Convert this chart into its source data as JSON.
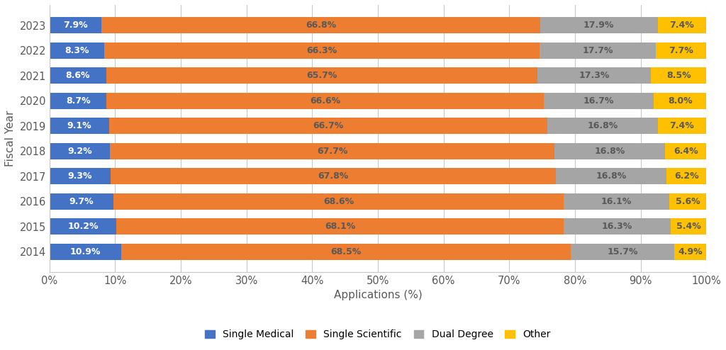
{
  "years": [
    "2023",
    "2022",
    "2021",
    "2020",
    "2019",
    "2018",
    "2017",
    "2016",
    "2015",
    "2014"
  ],
  "single_medical": [
    7.9,
    8.3,
    8.6,
    8.7,
    9.1,
    9.2,
    9.3,
    9.7,
    10.2,
    10.9
  ],
  "single_scientific": [
    66.8,
    66.3,
    65.7,
    66.6,
    66.7,
    67.7,
    67.8,
    68.6,
    68.1,
    68.5
  ],
  "dual_degree": [
    17.9,
    17.7,
    17.3,
    16.7,
    16.8,
    16.8,
    16.8,
    16.1,
    16.3,
    15.7
  ],
  "other": [
    7.4,
    7.7,
    8.5,
    8.0,
    7.4,
    6.4,
    6.2,
    5.6,
    5.4,
    4.9
  ],
  "colors": {
    "single_medical": "#4472C4",
    "single_scientific": "#ED7D31",
    "dual_degree": "#A5A5A5",
    "other": "#FFC000"
  },
  "labels": {
    "single_medical": "Single Medical",
    "single_scientific": "Single Scientific",
    "dual_degree": "Dual Degree",
    "other": "Other"
  },
  "xlabel": "Applications (%)",
  "ylabel": "Fiscal Year",
  "xlim": [
    0,
    100
  ],
  "xtick_labels": [
    "0%",
    "10%",
    "20%",
    "30%",
    "40%",
    "50%",
    "60%",
    "70%",
    "80%",
    "90%",
    "100%"
  ],
  "xtick_values": [
    0,
    10,
    20,
    30,
    40,
    50,
    60,
    70,
    80,
    90,
    100
  ],
  "bar_height": 0.65,
  "background_color": "#FFFFFF",
  "grid_color": "#C8C8C8",
  "text_color_light": "#FFFFFF",
  "text_color_dark": "#595959",
  "label_fontsize": 9.0,
  "tick_fontsize": 10.5,
  "axis_label_fontsize": 11,
  "legend_fontsize": 10
}
